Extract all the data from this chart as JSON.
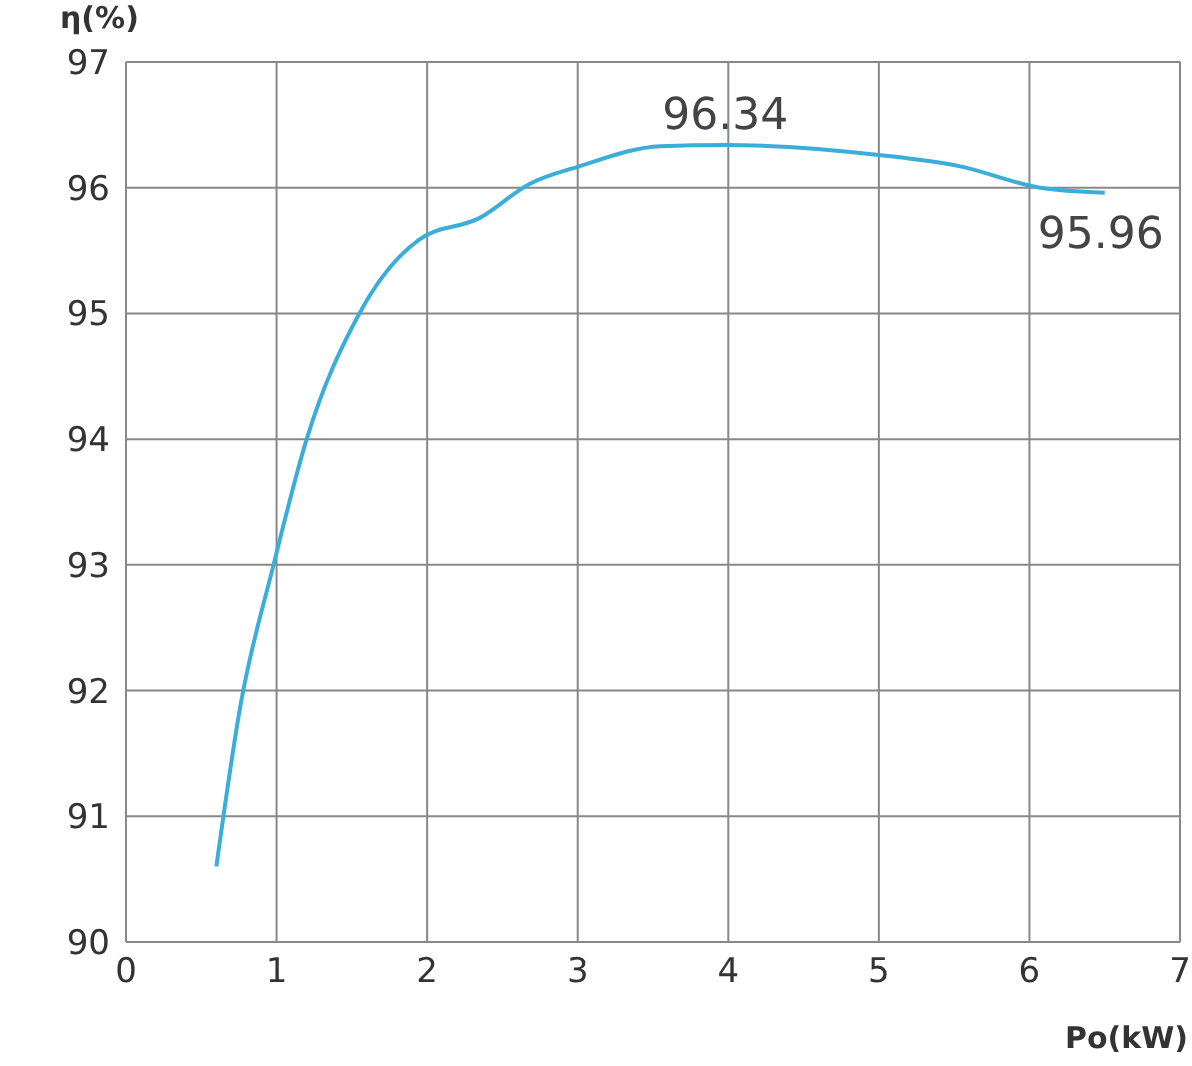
{
  "chart_data": {
    "type": "line",
    "ylabel": "η(%)",
    "xlabel": "Po(kW)",
    "x": [
      0.6,
      0.76,
      0.98,
      1.2,
      1.55,
      1.95,
      2.35,
      2.68,
      3.01,
      3.55,
      3.98,
      5.0,
      5.54,
      6.07,
      6.5
    ],
    "series": [
      {
        "color": "#3aaed8",
        "values": [
          90.6,
          91.88,
          93.0,
          94.0,
          95.0,
          95.59,
          95.76,
          96.03,
          96.17,
          96.33,
          96.34,
          96.26,
          96.17,
          96.0,
          95.96
        ]
      }
    ],
    "xlim": [
      0,
      7
    ],
    "xticks": [
      0,
      1,
      2,
      3,
      4,
      5,
      6,
      7
    ],
    "ylim": [
      90,
      97
    ],
    "yticks": [
      90,
      91,
      92,
      93,
      94,
      95,
      96,
      97
    ],
    "grid": true,
    "marker": "none",
    "line_style": "solid",
    "annotations": [
      {
        "text": "96.34",
        "x": 3.98,
        "y": 96.34
      },
      {
        "text": "95.96",
        "x": 6.5,
        "y": 95.96
      }
    ]
  }
}
